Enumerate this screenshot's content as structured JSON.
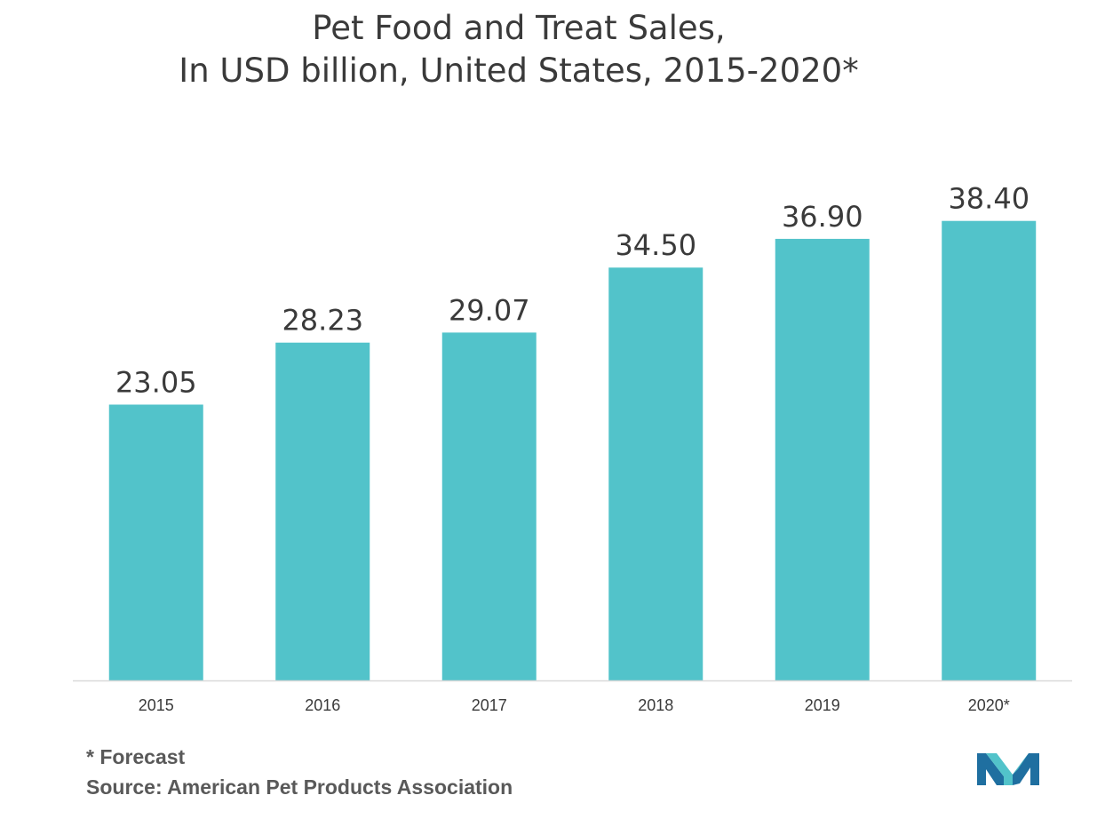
{
  "chart_data": {
    "type": "bar",
    "title": "Pet Food and Treat Sales,",
    "subtitle": "In USD billion, United States, 2015-2020*",
    "categories": [
      "2015",
      "2016",
      "2017",
      "2018",
      "2019",
      "2020*"
    ],
    "values": [
      23.05,
      28.23,
      29.07,
      34.5,
      36.9,
      38.4
    ],
    "value_labels": [
      "23.05",
      "28.23",
      "29.07",
      "34.50",
      "36.90",
      "38.40"
    ],
    "xlabel": "",
    "ylabel": "",
    "ylim": [
      0,
      43.5
    ],
    "grid": false,
    "bar_color": "#52C3CA"
  },
  "footnotes": {
    "forecast": "* Forecast",
    "source": "Source: American Pet Products Association"
  },
  "colors": {
    "bar": "#52C3CA",
    "logo_dark": "#1F6FA0",
    "logo_light": "#52C3CA",
    "text": "#3a3a3a",
    "axis": "#d9d9d9"
  }
}
